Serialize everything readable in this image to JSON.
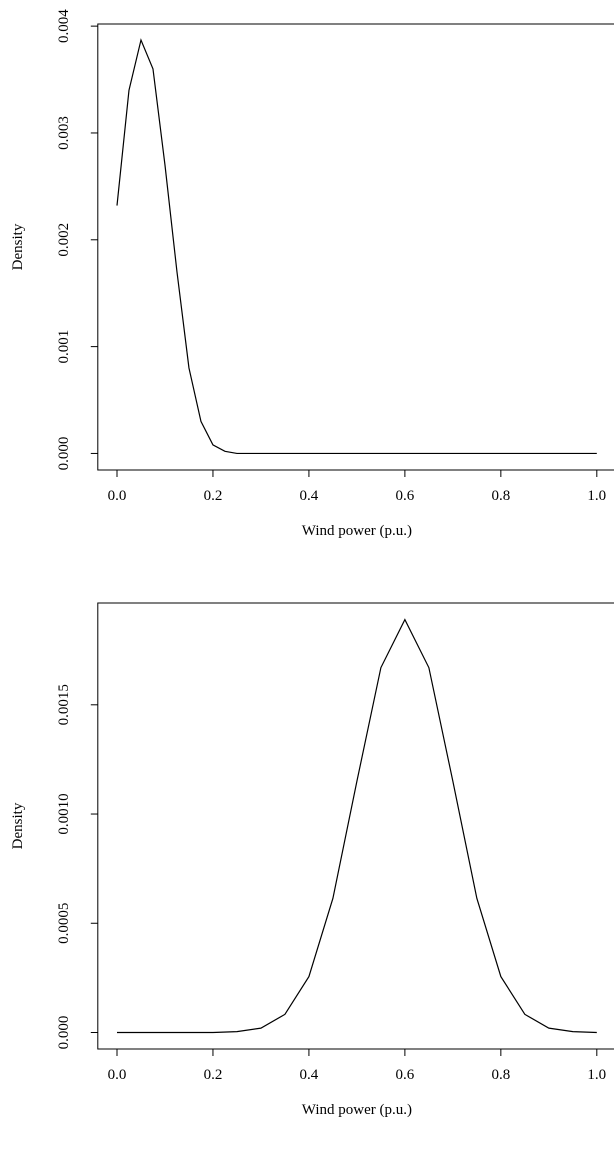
{
  "chart_data": [
    {
      "type": "line",
      "x_label": "Wind power (p.u.)",
      "y_label": "Density",
      "x": [
        0,
        0.025,
        0.05,
        0.075,
        0.1,
        0.125,
        0.15,
        0.175,
        0.2,
        0.225,
        0.25,
        0.3,
        0.4,
        0.5,
        0.6,
        0.7,
        0.8,
        0.9,
        1.0
      ],
      "values": [
        0.00232,
        0.0034,
        0.00387,
        0.0036,
        0.0027,
        0.0017,
        0.0008,
        0.0003,
        8e-05,
        2e-05,
        0,
        0,
        0,
        0,
        0,
        0,
        0,
        0,
        0
      ],
      "color": "#000000",
      "xlim": [
        -0.04,
        1.04
      ],
      "xticks": [
        {
          "value": 0,
          "label": "0.0"
        },
        0.2,
        0.4,
        0.6,
        0.8,
        {
          "value": 1,
          "label": "1.0"
        }
      ],
      "ylim": [
        -0.000155,
        0.00402
      ],
      "yticks": [
        {
          "value": 0,
          "label": "0.000"
        },
        0.001,
        0.002,
        0.003,
        0.004
      ]
    },
    {
      "type": "line",
      "x_label": "Wind power (p.u.)",
      "y_label": "Density",
      "x": [
        0,
        0.05,
        0.1,
        0.15,
        0.2,
        0.25,
        0.3,
        0.35,
        0.4,
        0.45,
        0.5,
        0.55,
        0.6,
        0.65,
        0.7,
        0.75,
        0.8,
        0.85,
        0.9,
        0.95,
        1.0
      ],
      "values": [
        0,
        0,
        0,
        0,
        0,
        4e-06,
        2e-05,
        8.3e-05,
        0.000256,
        0.000614,
        0.00115,
        0.00167,
        0.00189,
        0.00167,
        0.00115,
        0.000614,
        0.000256,
        8.3e-05,
        2e-05,
        4e-06,
        0
      ],
      "color": "#000000",
      "xlim": [
        -0.04,
        1.04
      ],
      "xticks": [
        {
          "value": 0,
          "label": "0.0"
        },
        0.2,
        0.4,
        0.6,
        0.8,
        {
          "value": 1,
          "label": "1.0"
        }
      ],
      "ylim": [
        -7.56e-05,
        0.001966
      ],
      "yticks": [
        {
          "value": 0,
          "label": "0.000"
        },
        0.0005,
        {
          "value": 0.001,
          "label": "0.0010"
        },
        0.0015
      ]
    }
  ]
}
